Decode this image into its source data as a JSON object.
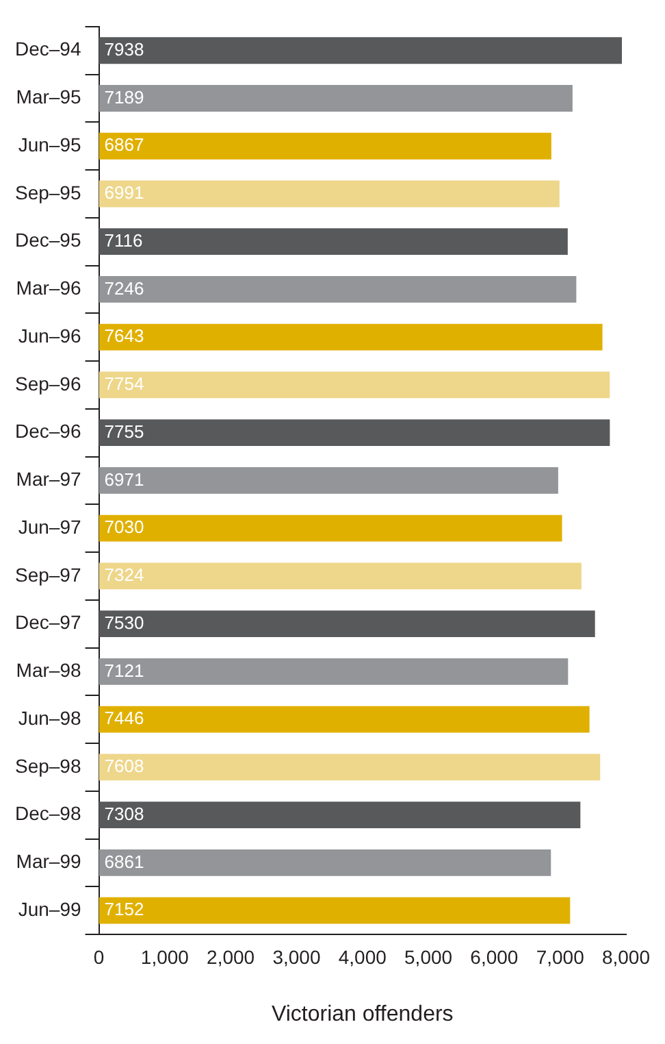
{
  "chart_data": {
    "type": "bar",
    "orientation": "horizontal",
    "xlabel": "Victorian offenders",
    "categories": [
      "Dec–94",
      "Mar–95",
      "Jun–95",
      "Sep–95",
      "Dec–95",
      "Mar–96",
      "Jun–96",
      "Sep–96",
      "Dec–96",
      "Mar–97",
      "Jun–97",
      "Sep–97",
      "Dec–97",
      "Mar–98",
      "Jun–98",
      "Sep–98",
      "Dec–98",
      "Mar–99",
      "Jun–99"
    ],
    "values": [
      7938,
      7189,
      6867,
      6991,
      7116,
      7246,
      7643,
      7754,
      7755,
      6971,
      7030,
      7324,
      7530,
      7121,
      7446,
      7608,
      7308,
      6861,
      7152
    ],
    "colors": [
      "#58595b",
      "#939598",
      "#e0b000",
      "#eed68a",
      "#58595b",
      "#939598",
      "#e0b000",
      "#eed68a",
      "#58595b",
      "#939598",
      "#e0b000",
      "#eed68a",
      "#58595b",
      "#939598",
      "#e0b000",
      "#eed68a",
      "#58595b",
      "#939598",
      "#e0b000"
    ],
    "xlim": [
      0,
      8000
    ],
    "xticks": [
      {
        "value": 0,
        "label": "0"
      },
      {
        "value": 1000,
        "label": "1,000"
      },
      {
        "value": 2000,
        "label": "2,000"
      },
      {
        "value": 3000,
        "label": "3,000"
      },
      {
        "value": 4000,
        "label": "4,000"
      },
      {
        "value": 5000,
        "label": "5,000"
      },
      {
        "value": 6000,
        "label": "6,000"
      },
      {
        "value": 7000,
        "label": "7,000"
      },
      {
        "value": 8000,
        "label": "8,000"
      }
    ],
    "data_labels": true,
    "grid": false,
    "legend": false
  }
}
